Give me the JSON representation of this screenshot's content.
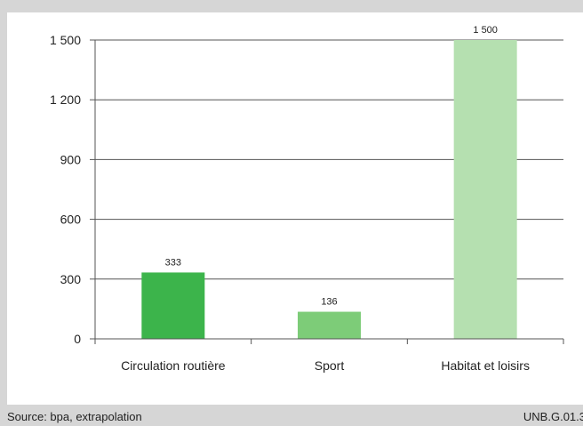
{
  "chart_data": {
    "type": "bar",
    "categories": [
      "Circulation routière",
      "Sport",
      "Habitat et loisirs"
    ],
    "values": [
      333,
      136,
      1500
    ],
    "value_labels": [
      "333",
      "136",
      "1 500"
    ],
    "colors": [
      "#3cb44b",
      "#7dcc78",
      "#b5e0b0"
    ],
    "ylim": [
      0,
      1500
    ],
    "yticks": [
      0,
      300,
      600,
      900,
      1200,
      1500
    ],
    "ytick_labels": [
      "0",
      "300",
      "600",
      "900",
      "1 200",
      "1 500"
    ],
    "grid": true
  },
  "footer": {
    "source": "Source: bpa, extrapolation",
    "code": "UNB.G.01.3"
  }
}
